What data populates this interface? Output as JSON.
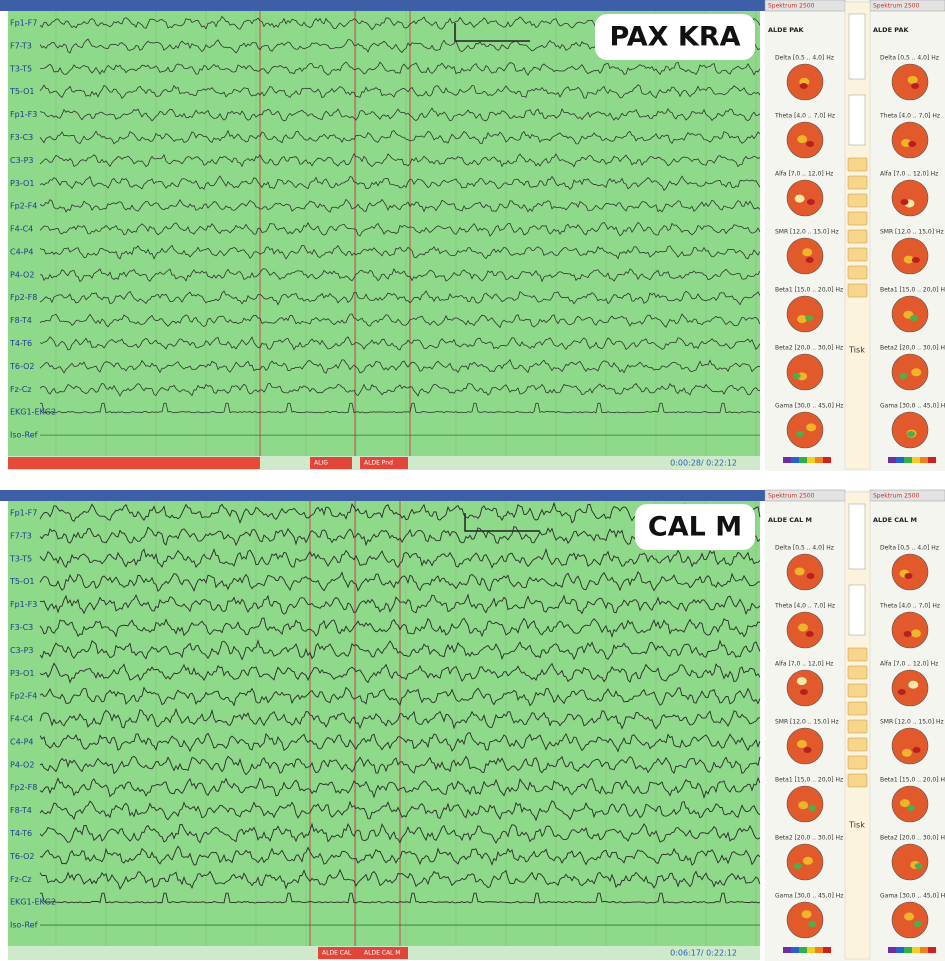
{
  "panels": [
    {
      "label": "PAX KRA",
      "subject": "ALDE PAK",
      "window_title": "Spektrum 2500",
      "channels": [
        "Fp1-F7",
        "F7-T3",
        "T3-T5",
        "T5-O1",
        "Fp1-F3",
        "F3-C3",
        "C3-P3",
        "P3-O1",
        "Fp2-F4",
        "F4-C4",
        "C4-P4",
        "P4-O2",
        "Fp2-F8",
        "F8-T4",
        "T4-T6",
        "T6-O2",
        "Fz-Cz",
        "EKG1-EKG2",
        "Iso-Ref"
      ],
      "time": "0:00:28/ 0:22:12",
      "markers": [
        "ALIG",
        "ALDE Pnd"
      ],
      "bands": [
        "Delta [0,5 .. 4,0] Hz",
        "Theta [4,0 .. 7,0] Hz",
        "Alfa [7,0 .. 12,0] Hz",
        "SMR [12,0 .. 15,0] Hz",
        "Beta1 [15,0 .. 20,0] Hz",
        "Beta2 [20,0 .. 30,0] Hz",
        "Gama [30,0 .. 45,0] Hz"
      ],
      "print_button": "Tisk"
    },
    {
      "label": "CAL M",
      "subject": "ALDE CAL M",
      "window_title": "Spektrum 2500",
      "channels": [
        "Fp1-F7",
        "F7-T3",
        "T3-T5",
        "T5-O1",
        "Fp1-F3",
        "F3-C3",
        "C3-P3",
        "P3-O1",
        "Fp2-F4",
        "F4-C4",
        "C4-P4",
        "P4-O2",
        "Fp2-F8",
        "F8-T4",
        "T4-T6",
        "T6-O2",
        "Fz-Cz",
        "EKG1-EKG2",
        "Iso-Ref"
      ],
      "time": "0:06:17/ 0:22:12",
      "markers": [
        "ALDE CAL",
        "ALDE CAL M"
      ],
      "bands": [
        "Delta [0,5 .. 4,0] Hz",
        "Theta [4,0 .. 7,0] Hz",
        "Alfa [7,0 .. 12,0] Hz",
        "SMR [12,0 .. 15,0] Hz",
        "Beta1 [15,0 .. 20,0] Hz",
        "Beta2 [20,0 .. 30,0] Hz",
        "Gama [30,0 .. 45,0] Hz"
      ],
      "print_button": "Tisk"
    }
  ]
}
